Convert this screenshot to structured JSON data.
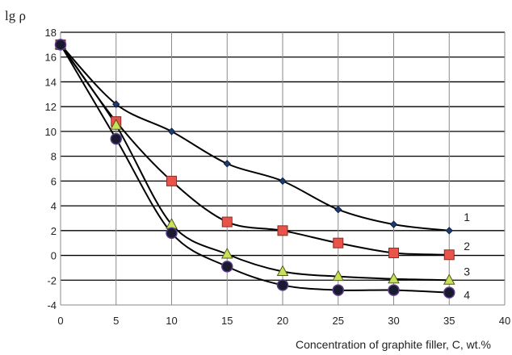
{
  "chart_data": {
    "type": "line",
    "xlabel": "Concentration of graphite filler, C, wt.%",
    "ylabel": "lg ρ",
    "xlim": [
      0,
      40
    ],
    "ylim": [
      -4,
      18
    ],
    "x_ticks": [
      0,
      5,
      10,
      15,
      20,
      25,
      30,
      35,
      40
    ],
    "y_ticks": [
      -4,
      -2,
      0,
      2,
      4,
      6,
      8,
      10,
      12,
      14,
      16,
      18
    ],
    "grid": true,
    "series": [
      {
        "name": "1",
        "marker": "diamond",
        "color": "#1f3b73",
        "x": [
          0,
          5,
          10,
          15,
          20,
          25,
          30,
          35
        ],
        "y": [
          17,
          12.2,
          10.0,
          7.4,
          6.0,
          3.7,
          2.5,
          2.0
        ]
      },
      {
        "name": "2",
        "marker": "square",
        "color": "#e8534a",
        "x": [
          0,
          5,
          10,
          15,
          20,
          25,
          30,
          35
        ],
        "y": [
          17,
          10.8,
          6.0,
          2.7,
          2.0,
          1.0,
          0.2,
          0.05
        ]
      },
      {
        "name": "3",
        "marker": "triangle",
        "color": "#c8e05a",
        "x": [
          0,
          5,
          10,
          15,
          20,
          25,
          30,
          35
        ],
        "y": [
          17,
          10.5,
          2.5,
          0.1,
          -1.3,
          -1.7,
          -1.9,
          -2.0
        ]
      },
      {
        "name": "4",
        "marker": "circle",
        "color": "#1a1a2e",
        "x": [
          0,
          5,
          10,
          15,
          20,
          25,
          30,
          35
        ],
        "y": [
          17,
          9.4,
          1.8,
          -0.9,
          -2.4,
          -2.8,
          -2.8,
          -3.0
        ]
      }
    ]
  }
}
